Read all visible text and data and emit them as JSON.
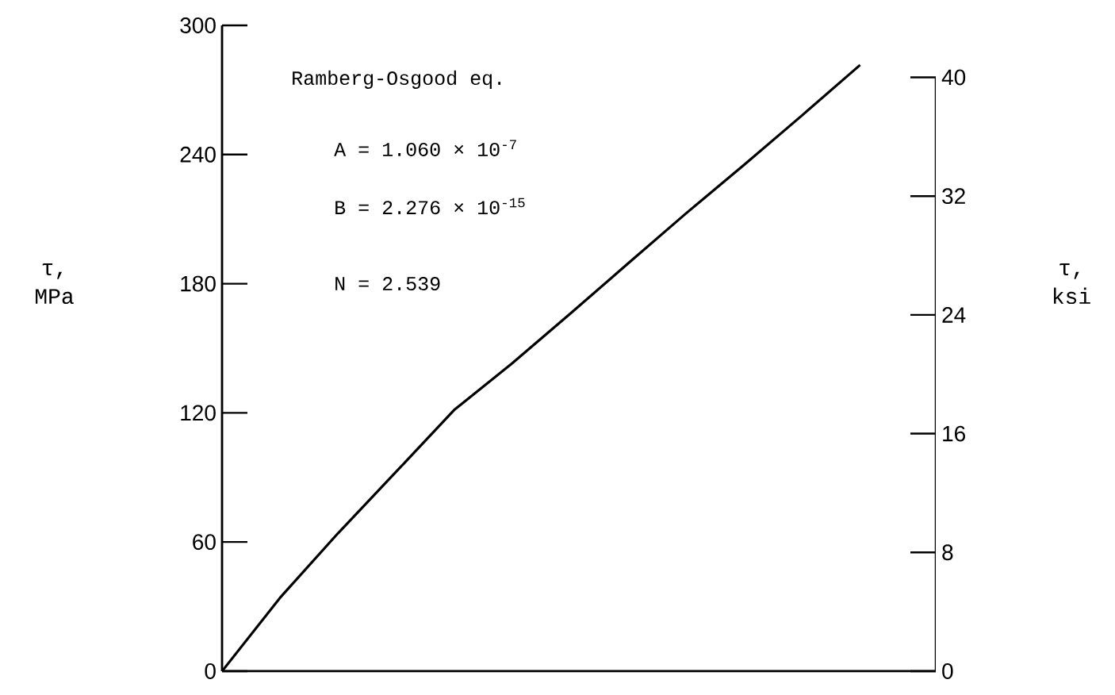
{
  "chart_data": {
    "type": "line",
    "categories": [
      null,
      null,
      null,
      null,
      null,
      null,
      null,
      null,
      null,
      null,
      null,
      null
    ],
    "series": [
      {
        "color": "#000000",
        "values": [
          0,
          34.1,
          64.1,
          92.6,
          121.3,
          143.0,
          166.0,
          189.4,
          212.7,
          235.2,
          258.2,
          281.6
        ]
      }
    ],
    "ylim": [
      0,
      300
    ],
    "yticks": [
      0,
      60,
      120,
      180,
      240,
      300
    ],
    "y2lim": [
      0,
      43.5
    ],
    "y2ticks": [
      0,
      8,
      16,
      24,
      32,
      40
    ],
    "ylabel": "τ, MPa",
    "y2label": "τ, ksi",
    "tick_labels": "y",
    "marker": "none",
    "line_style": "solid",
    "annotations": [
      "Ramberg-Osgood eq.",
      "A = 1.060 × 10$^{-7}$",
      "B = 2.276 × 10$^{-15}$",
      "N = 2.539"
    ]
  }
}
